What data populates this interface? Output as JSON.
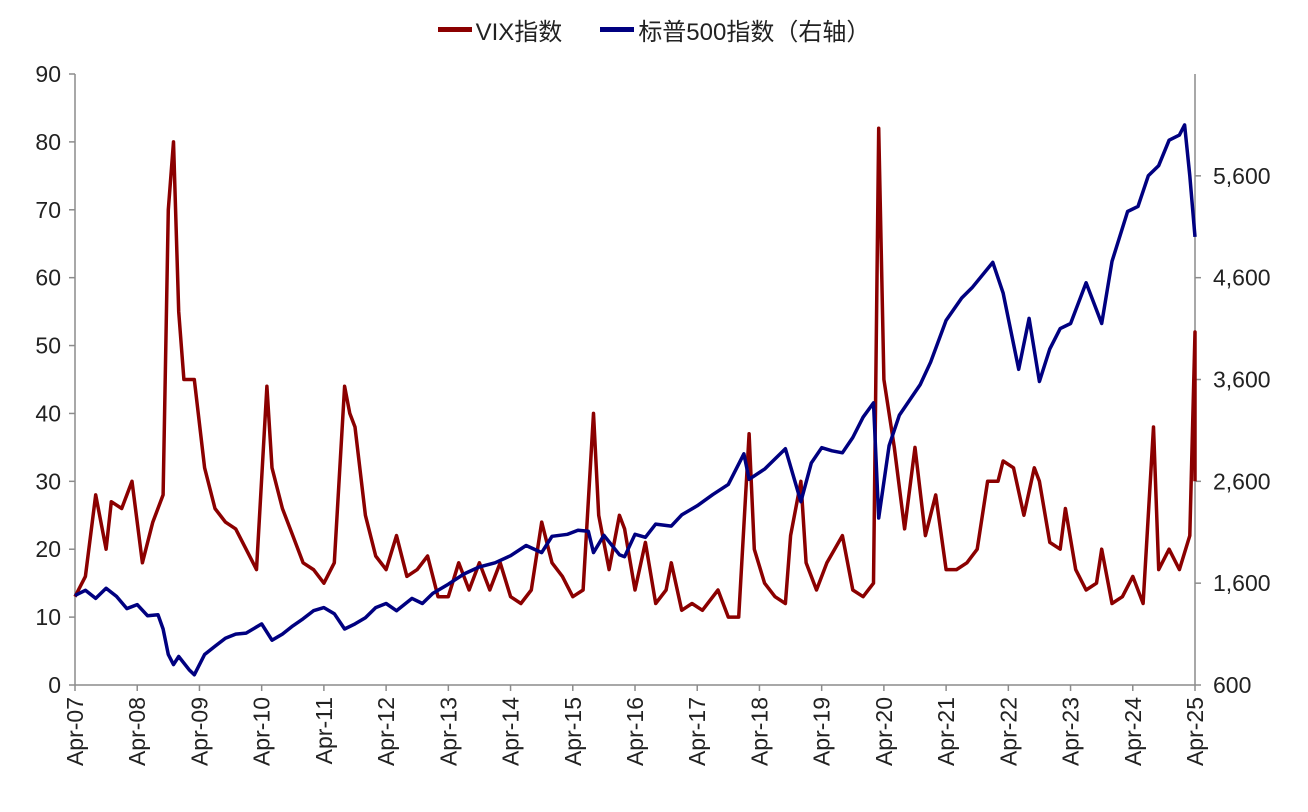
{
  "chart_data": {
    "type": "line",
    "legend": [
      {
        "label": "VIX指数",
        "color": "#8B0000"
      },
      {
        "label": "标普500指数（右轴）",
        "color": "#000080"
      }
    ],
    "x_tick_labels": [
      "Apr-07",
      "Apr-08",
      "Apr-09",
      "Apr-10",
      "Apr-11",
      "Apr-12",
      "Apr-13",
      "Apr-14",
      "Apr-15",
      "Apr-16",
      "Apr-17",
      "Apr-18",
      "Apr-19",
      "Apr-20",
      "Apr-21",
      "Apr-22",
      "Apr-23",
      "Apr-24",
      "Apr-25"
    ],
    "y_left": {
      "min": 0,
      "max": 90,
      "ticks": [
        "0",
        "10",
        "20",
        "30",
        "40",
        "50",
        "60",
        "70",
        "80",
        "90"
      ]
    },
    "y_right": {
      "min": 600,
      "max": 6600,
      "ticks": [
        "600",
        "1,600",
        "2,600",
        "3,600",
        "4,600",
        "5,600"
      ],
      "tick_values": [
        600,
        1600,
        2600,
        3600,
        4600,
        5600
      ]
    },
    "grid": false,
    "legend_position": "top-center",
    "series": [
      {
        "name": "VIX指数",
        "axis": "left",
        "color": "#8B0000",
        "points": [
          [
            "2007-04",
            13
          ],
          [
            "2007-06",
            16
          ],
          [
            "2007-08",
            28
          ],
          [
            "2007-10",
            20
          ],
          [
            "2007-11",
            27
          ],
          [
            "2008-01",
            26
          ],
          [
            "2008-03",
            30
          ],
          [
            "2008-05",
            18
          ],
          [
            "2008-07",
            24
          ],
          [
            "2008-09",
            28
          ],
          [
            "2008-10",
            70
          ],
          [
            "2008-11",
            80
          ],
          [
            "2008-12",
            55
          ],
          [
            "2009-01",
            45
          ],
          [
            "2009-03",
            45
          ],
          [
            "2009-05",
            32
          ],
          [
            "2009-07",
            26
          ],
          [
            "2009-09",
            24
          ],
          [
            "2009-11",
            23
          ],
          [
            "2010-01",
            20
          ],
          [
            "2010-03",
            17
          ],
          [
            "2010-05",
            44
          ],
          [
            "2010-06",
            32
          ],
          [
            "2010-08",
            26
          ],
          [
            "2010-10",
            22
          ],
          [
            "2010-12",
            18
          ],
          [
            "2011-02",
            17
          ],
          [
            "2011-04",
            15
          ],
          [
            "2011-06",
            18
          ],
          [
            "2011-08",
            44
          ],
          [
            "2011-09",
            40
          ],
          [
            "2011-10",
            38
          ],
          [
            "2011-12",
            25
          ],
          [
            "2012-02",
            19
          ],
          [
            "2012-04",
            17
          ],
          [
            "2012-06",
            22
          ],
          [
            "2012-08",
            16
          ],
          [
            "2012-10",
            17
          ],
          [
            "2012-12",
            19
          ],
          [
            "2013-02",
            13
          ],
          [
            "2013-04",
            13
          ],
          [
            "2013-06",
            18
          ],
          [
            "2013-08",
            14
          ],
          [
            "2013-10",
            18
          ],
          [
            "2013-12",
            14
          ],
          [
            "2014-02",
            18
          ],
          [
            "2014-04",
            13
          ],
          [
            "2014-06",
            12
          ],
          [
            "2014-08",
            14
          ],
          [
            "2014-10",
            24
          ],
          [
            "2014-12",
            18
          ],
          [
            "2015-02",
            16
          ],
          [
            "2015-04",
            13
          ],
          [
            "2015-06",
            14
          ],
          [
            "2015-08",
            40
          ],
          [
            "2015-09",
            25
          ],
          [
            "2015-11",
            17
          ],
          [
            "2016-01",
            25
          ],
          [
            "2016-02",
            23
          ],
          [
            "2016-04",
            14
          ],
          [
            "2016-06",
            21
          ],
          [
            "2016-08",
            12
          ],
          [
            "2016-10",
            14
          ],
          [
            "2016-11",
            18
          ],
          [
            "2017-01",
            11
          ],
          [
            "2017-03",
            12
          ],
          [
            "2017-05",
            11
          ],
          [
            "2017-08",
            14
          ],
          [
            "2017-10",
            10
          ],
          [
            "2017-12",
            10
          ],
          [
            "2018-02",
            37
          ],
          [
            "2018-03",
            20
          ],
          [
            "2018-05",
            15
          ],
          [
            "2018-07",
            13
          ],
          [
            "2018-09",
            12
          ],
          [
            "2018-10",
            22
          ],
          [
            "2018-12",
            30
          ],
          [
            "2019-01",
            18
          ],
          [
            "2019-03",
            14
          ],
          [
            "2019-05",
            18
          ],
          [
            "2019-08",
            22
          ],
          [
            "2019-10",
            14
          ],
          [
            "2019-12",
            13
          ],
          [
            "2020-02",
            15
          ],
          [
            "2020-03",
            82
          ],
          [
            "2020-04",
            45
          ],
          [
            "2020-06",
            35
          ],
          [
            "2020-08",
            23
          ],
          [
            "2020-10",
            35
          ],
          [
            "2020-12",
            22
          ],
          [
            "2021-02",
            28
          ],
          [
            "2021-04",
            17
          ],
          [
            "2021-06",
            17
          ],
          [
            "2021-08",
            18
          ],
          [
            "2021-10",
            20
          ],
          [
            "2021-12",
            30
          ],
          [
            "2022-02",
            30
          ],
          [
            "2022-03",
            33
          ],
          [
            "2022-05",
            32
          ],
          [
            "2022-07",
            25
          ],
          [
            "2022-09",
            32
          ],
          [
            "2022-10",
            30
          ],
          [
            "2022-12",
            21
          ],
          [
            "2023-02",
            20
          ],
          [
            "2023-03",
            26
          ],
          [
            "2023-05",
            17
          ],
          [
            "2023-07",
            14
          ],
          [
            "2023-09",
            15
          ],
          [
            "2023-10",
            20
          ],
          [
            "2023-12",
            12
          ],
          [
            "2024-02",
            13
          ],
          [
            "2024-04",
            16
          ],
          [
            "2024-06",
            12
          ],
          [
            "2024-08",
            38
          ],
          [
            "2024-09",
            17
          ],
          [
            "2024-11",
            20
          ],
          [
            "2025-01",
            17
          ],
          [
            "2025-03",
            22
          ],
          [
            "2025-04",
            52
          ],
          [
            "2025-04",
            30
          ]
        ]
      },
      {
        "name": "标普500指数（右轴）",
        "axis": "right",
        "color": "#000080",
        "points": [
          [
            "2007-04",
            1480
          ],
          [
            "2007-06",
            1530
          ],
          [
            "2007-08",
            1450
          ],
          [
            "2007-10",
            1550
          ],
          [
            "2007-12",
            1470
          ],
          [
            "2008-02",
            1350
          ],
          [
            "2008-04",
            1390
          ],
          [
            "2008-06",
            1280
          ],
          [
            "2008-08",
            1290
          ],
          [
            "2008-09",
            1150
          ],
          [
            "2008-10",
            900
          ],
          [
            "2008-11",
            800
          ],
          [
            "2008-12",
            880
          ],
          [
            "2009-02",
            750
          ],
          [
            "2009-03",
            700
          ],
          [
            "2009-05",
            900
          ],
          [
            "2009-07",
            980
          ],
          [
            "2009-09",
            1060
          ],
          [
            "2009-11",
            1100
          ],
          [
            "2010-01",
            1110
          ],
          [
            "2010-04",
            1200
          ],
          [
            "2010-06",
            1040
          ],
          [
            "2010-08",
            1100
          ],
          [
            "2010-10",
            1180
          ],
          [
            "2010-12",
            1250
          ],
          [
            "2011-02",
            1330
          ],
          [
            "2011-04",
            1360
          ],
          [
            "2011-06",
            1300
          ],
          [
            "2011-08",
            1150
          ],
          [
            "2011-10",
            1200
          ],
          [
            "2011-12",
            1260
          ],
          [
            "2012-02",
            1360
          ],
          [
            "2012-04",
            1400
          ],
          [
            "2012-06",
            1330
          ],
          [
            "2012-09",
            1450
          ],
          [
            "2012-11",
            1400
          ],
          [
            "2013-01",
            1500
          ],
          [
            "2013-04",
            1590
          ],
          [
            "2013-07",
            1690
          ],
          [
            "2013-10",
            1760
          ],
          [
            "2014-01",
            1800
          ],
          [
            "2014-04",
            1870
          ],
          [
            "2014-07",
            1970
          ],
          [
            "2014-10",
            1900
          ],
          [
            "2014-12",
            2060
          ],
          [
            "2015-03",
            2080
          ],
          [
            "2015-05",
            2120
          ],
          [
            "2015-07",
            2110
          ],
          [
            "2015-08",
            1900
          ],
          [
            "2015-10",
            2070
          ],
          [
            "2016-01",
            1880
          ],
          [
            "2016-02",
            1860
          ],
          [
            "2016-04",
            2080
          ],
          [
            "2016-06",
            2050
          ],
          [
            "2016-08",
            2180
          ],
          [
            "2016-11",
            2160
          ],
          [
            "2017-01",
            2270
          ],
          [
            "2017-04",
            2360
          ],
          [
            "2017-07",
            2470
          ],
          [
            "2017-10",
            2570
          ],
          [
            "2018-01",
            2870
          ],
          [
            "2018-02",
            2620
          ],
          [
            "2018-05",
            2720
          ],
          [
            "2018-09",
            2920
          ],
          [
            "2018-12",
            2400
          ],
          [
            "2019-02",
            2780
          ],
          [
            "2019-04",
            2930
          ],
          [
            "2019-06",
            2900
          ],
          [
            "2019-08",
            2880
          ],
          [
            "2019-10",
            3030
          ],
          [
            "2019-12",
            3230
          ],
          [
            "2020-02",
            3370
          ],
          [
            "2020-03",
            2240
          ],
          [
            "2020-05",
            2950
          ],
          [
            "2020-07",
            3250
          ],
          [
            "2020-09",
            3400
          ],
          [
            "2020-11",
            3550
          ],
          [
            "2021-01",
            3770
          ],
          [
            "2021-04",
            4180
          ],
          [
            "2021-07",
            4400
          ],
          [
            "2021-09",
            4500
          ],
          [
            "2022-01",
            4750
          ],
          [
            "2022-03",
            4450
          ],
          [
            "2022-05",
            3950
          ],
          [
            "2022-06",
            3700
          ],
          [
            "2022-08",
            4200
          ],
          [
            "2022-10",
            3580
          ],
          [
            "2022-12",
            3900
          ],
          [
            "2023-02",
            4100
          ],
          [
            "2023-04",
            4150
          ],
          [
            "2023-07",
            4550
          ],
          [
            "2023-10",
            4150
          ],
          [
            "2023-12",
            4760
          ],
          [
            "2024-03",
            5250
          ],
          [
            "2024-05",
            5300
          ],
          [
            "2024-07",
            5600
          ],
          [
            "2024-09",
            5700
          ],
          [
            "2024-11",
            5950
          ],
          [
            "2025-01",
            6000
          ],
          [
            "2025-02",
            6100
          ],
          [
            "2025-03",
            5600
          ],
          [
            "2025-04",
            5000
          ]
        ]
      }
    ]
  }
}
